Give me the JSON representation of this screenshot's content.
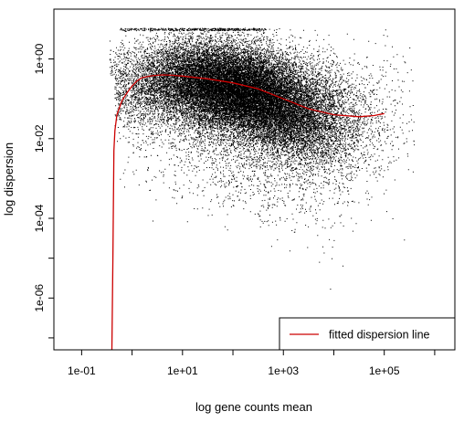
{
  "chart_data": {
    "type": "scatter",
    "xlabel": "log gene counts mean",
    "ylabel": "log dispersion",
    "x_log10_range": [
      -1.55,
      6.4
    ],
    "y_log10_range": [
      -7.3,
      1.25
    ],
    "log_x": true,
    "log_y": true,
    "x_ticks": [
      {
        "exp": -1,
        "label": "1e-01"
      },
      {
        "exp": 1,
        "label": "1e+01"
      },
      {
        "exp": 3,
        "label": "1e+03"
      },
      {
        "exp": 5,
        "label": "1e+05"
      }
    ],
    "y_ticks": [
      {
        "exp": 0,
        "label": "1e+00"
      },
      {
        "exp": -2,
        "label": "1e-02"
      },
      {
        "exp": -4,
        "label": "1e-04"
      },
      {
        "exp": -6,
        "label": "1e-06"
      }
    ],
    "grid": false,
    "legend_position": "bottom-right",
    "series": [
      {
        "name": "",
        "kind": "points",
        "color": "#000000",
        "approx_count": 30000
      },
      {
        "name": "fitted dispersion line",
        "kind": "line",
        "color": "#cc0000",
        "points": [
          [
            -0.4,
            -7.3
          ],
          [
            -0.38,
            -5.0
          ],
          [
            -0.36,
            -2.3
          ],
          [
            -0.34,
            -1.8
          ],
          [
            -0.3,
            -1.4
          ],
          [
            -0.2,
            -1.05
          ],
          [
            -0.1,
            -0.85
          ],
          [
            0.0,
            -0.68
          ],
          [
            0.1,
            -0.55
          ],
          [
            0.2,
            -0.47
          ],
          [
            0.4,
            -0.42
          ],
          [
            0.6,
            -0.4
          ],
          [
            0.8,
            -0.41
          ],
          [
            1.0,
            -0.43
          ],
          [
            1.5,
            -0.5
          ],
          [
            2.0,
            -0.6
          ],
          [
            2.5,
            -0.75
          ],
          [
            3.0,
            -1.0
          ],
          [
            3.5,
            -1.25
          ],
          [
            4.0,
            -1.4
          ],
          [
            4.5,
            -1.45
          ],
          [
            4.8,
            -1.42
          ],
          [
            5.0,
            -1.37
          ]
        ]
      }
    ]
  }
}
